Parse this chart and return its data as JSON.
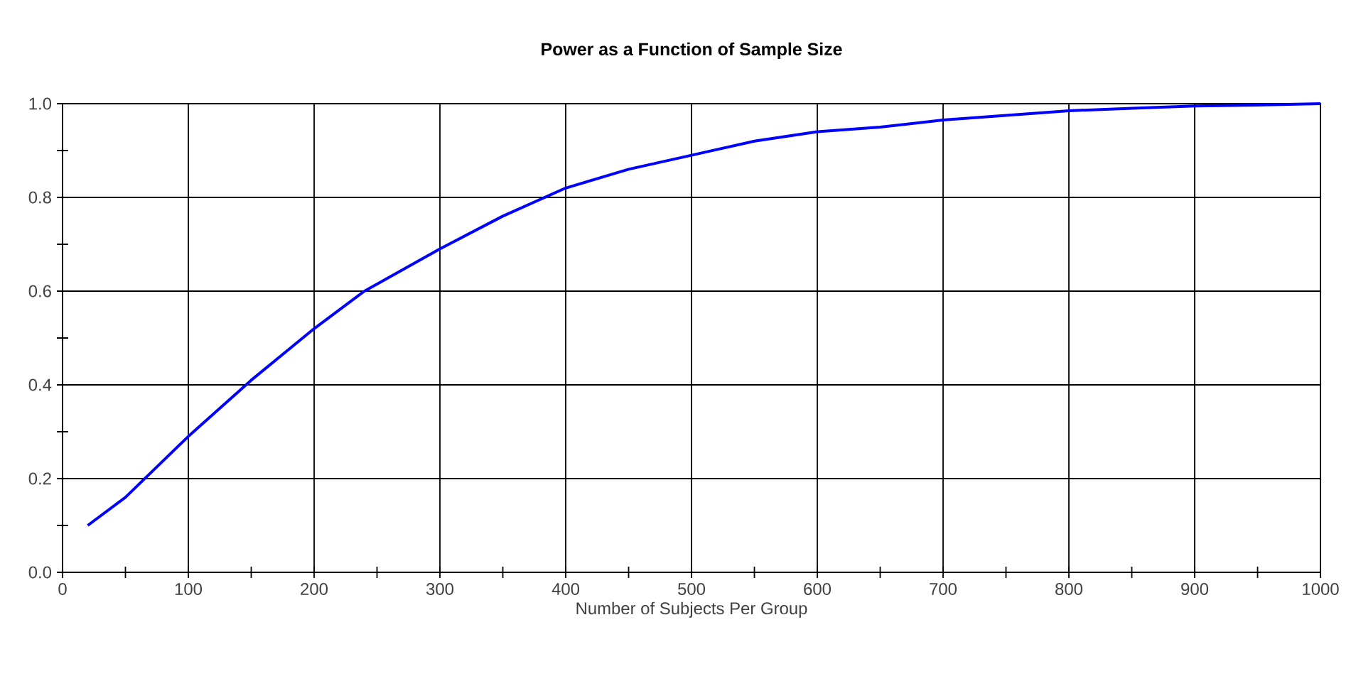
{
  "chart_data": {
    "type": "line",
    "title": "Power as a Function of Sample Size",
    "xlabel": "Number of Subjects Per Group",
    "x": [
      20,
      50,
      100,
      150,
      200,
      240,
      300,
      350,
      400,
      450,
      500,
      550,
      600,
      650,
      700,
      750,
      800,
      850,
      900,
      950,
      1000
    ],
    "series": [
      {
        "color": "#0000ff",
        "values": [
          0.1,
          0.16,
          0.29,
          0.41,
          0.52,
          0.6,
          0.69,
          0.76,
          0.82,
          0.86,
          0.89,
          0.92,
          0.94,
          0.95,
          0.965,
          0.975,
          0.985,
          0.99,
          0.995,
          0.997,
          1.0
        ]
      }
    ],
    "xlim": [
      0,
      1000
    ],
    "ylim": [
      0,
      1
    ],
    "xticks": [
      0,
      {
        "value": 50,
        "label": null
      },
      100,
      {
        "value": 150,
        "label": null
      },
      200,
      {
        "value": 250,
        "label": null
      },
      300,
      {
        "value": 350,
        "label": null
      },
      400,
      {
        "value": 450,
        "label": null
      },
      500,
      {
        "value": 550,
        "label": null
      },
      600,
      {
        "value": 650,
        "label": null
      },
      700,
      {
        "value": 750,
        "label": null
      },
      800,
      {
        "value": 850,
        "label": null
      },
      900,
      {
        "value": 950,
        "label": null
      },
      1000
    ],
    "yticks": [
      {
        "value": 0,
        "label": "0.0"
      },
      {
        "value": 0.1,
        "label": null
      },
      0.2,
      {
        "value": 0.3,
        "label": null
      },
      0.4,
      {
        "value": 0.5,
        "label": null
      },
      0.6,
      {
        "value": 0.7,
        "label": null
      },
      0.8,
      {
        "value": 0.9,
        "label": null
      },
      {
        "value": 1,
        "label": "1.0"
      }
    ],
    "grid": true,
    "marker": "none",
    "line_style": "solid"
  }
}
